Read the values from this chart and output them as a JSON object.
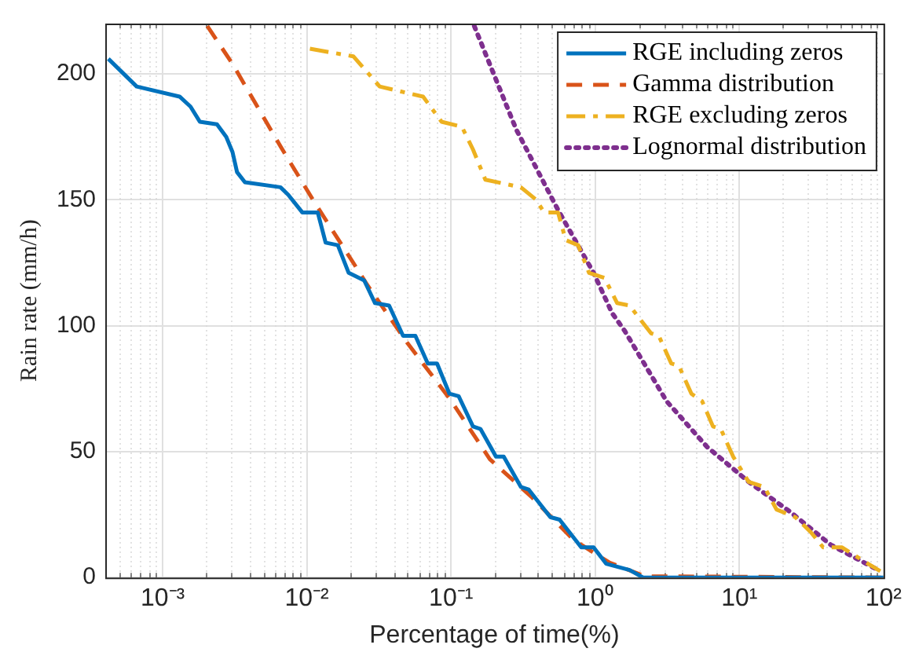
{
  "chart_data": {
    "type": "line",
    "xlabel": "Percentage of time(%)",
    "ylabel": "Rain rate (mm/h)",
    "log": "x",
    "xlim": [
      0.0004,
      100
    ],
    "ylim": [
      0,
      220
    ],
    "xticks": [
      {
        "value": 0.001,
        "label": "10⁻³"
      },
      {
        "value": 0.01,
        "label": "10⁻²"
      },
      {
        "value": 0.1,
        "label": "10⁻¹"
      },
      {
        "value": 1,
        "label": "10⁰"
      },
      {
        "value": 10,
        "label": "10¹"
      },
      {
        "value": 100,
        "label": "10²"
      }
    ],
    "yticks": [
      0,
      50,
      100,
      150,
      200
    ],
    "grid": true,
    "legend": "top right",
    "marker": "none",
    "series": [
      {
        "name": "RGE including zeros",
        "color": "#0072bd",
        "line_style": "solid",
        "x": [
          0.00042,
          0.00066,
          0.00131,
          0.00156,
          0.00181,
          0.00238,
          0.00276,
          0.00305,
          0.00328,
          0.00372,
          0.00656,
          0.00743,
          0.0093,
          0.0119,
          0.0135,
          0.0164,
          0.0195,
          0.025,
          0.0297,
          0.0372,
          0.0465,
          0.0566,
          0.069,
          0.08,
          0.0975,
          0.113,
          0.142,
          0.16,
          0.205,
          0.232,
          0.305,
          0.345,
          0.488,
          0.566,
          0.8,
          0.975,
          1.19,
          1.73,
          2.15,
          100
        ],
        "values": [
          206,
          195,
          191,
          187,
          181,
          180,
          175,
          169,
          161,
          157,
          155,
          152,
          145,
          145,
          133,
          132,
          121,
          118,
          109,
          108,
          96,
          96,
          85,
          85,
          73,
          72,
          60,
          59,
          48,
          48,
          36,
          35,
          24,
          23,
          12,
          12,
          5.5,
          3,
          0,
          0
        ]
      },
      {
        "name": "Gamma distribution",
        "color": "#d95319",
        "line_style": "dashed",
        "x": [
          0.00204,
          0.00305,
          0.0066,
          0.0113,
          0.0221,
          0.0257,
          0.05,
          0.098,
          0.186,
          0.362,
          0.706,
          1.25,
          2.21,
          100
        ],
        "values": [
          219,
          204,
          171,
          149,
          123,
          117,
          93,
          71,
          47,
          32,
          15,
          6,
          0.5,
          0
        ]
      },
      {
        "name": "RGE excluding zeros",
        "color": "#edb120",
        "line_style": "dashdot",
        "x": [
          0.0105,
          0.021,
          0.032,
          0.064,
          0.086,
          0.119,
          0.142,
          0.173,
          0.305,
          0.39,
          0.442,
          0.552,
          0.625,
          0.762,
          0.906,
          1.16,
          1.42,
          1.73,
          2.44,
          2.76,
          3.37,
          3.81,
          4.65,
          5.52,
          6.56,
          7.43,
          9.06,
          11.6,
          14.9,
          18.1,
          24.4,
          31.3,
          38.1,
          51.3,
          78,
          95
        ],
        "values": [
          210,
          207,
          195,
          191,
          181,
          179,
          170,
          158,
          155,
          150,
          145,
          145,
          134,
          132,
          121,
          119,
          109,
          108,
          97,
          96,
          85,
          84,
          73,
          70,
          60,
          59,
          48,
          38,
          36,
          27,
          24,
          18,
          12,
          12,
          5.5,
          2.5
        ]
      },
      {
        "name": "Lognormal distribution",
        "color": "#7e2f8e",
        "line_style": "dotted",
        "x": [
          0.145,
          0.283,
          0.552,
          0.975,
          1.31,
          1.6,
          3.13,
          5.94,
          11.6,
          22.6,
          43,
          95
        ],
        "values": [
          219,
          178,
          146,
          121,
          105,
          98,
          70,
          52,
          38,
          26,
          13,
          2.5
        ]
      }
    ]
  }
}
